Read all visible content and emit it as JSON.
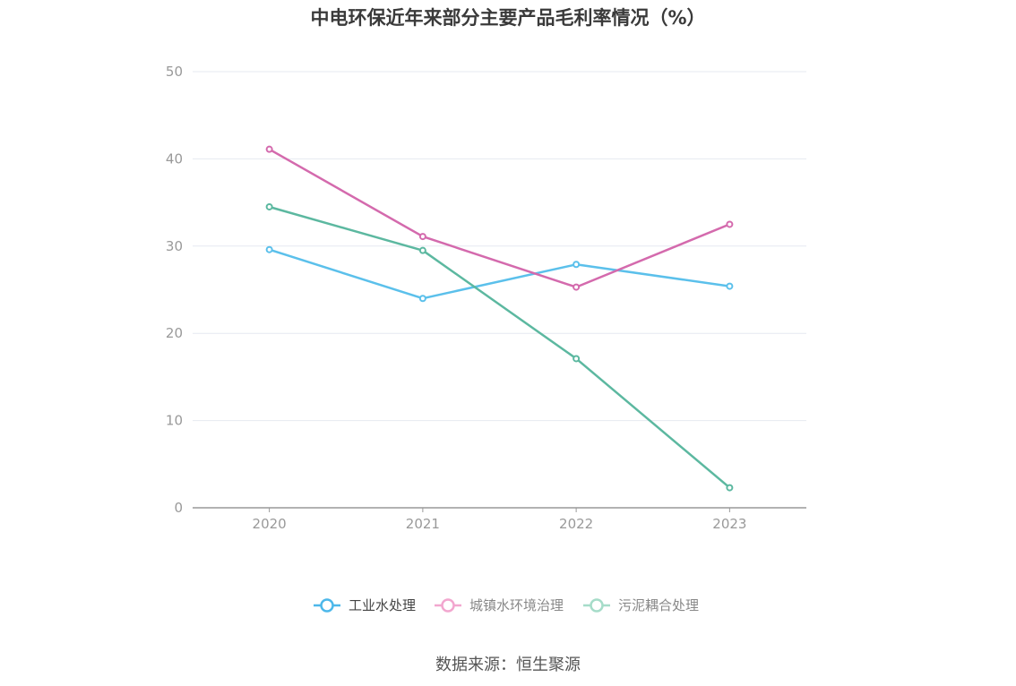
{
  "chart_data": {
    "type": "line",
    "title": "中电环保近年来部分主要产品毛利率情况（%）",
    "xlabel": "",
    "ylabel": "",
    "categories": [
      "2020",
      "2021",
      "2022",
      "2023"
    ],
    "ylim": [
      0,
      50
    ],
    "yticks": [
      "0",
      "10",
      "20",
      "30",
      "40",
      "50"
    ],
    "grid": true,
    "legend_position": "bottom",
    "series": [
      {
        "name": "工业水处理",
        "color": "#5bc0eb",
        "values": [
          29.6,
          24.0,
          27.9,
          25.4
        ]
      },
      {
        "name": "城镇水环境治理",
        "color": "#d46aad",
        "values": [
          41.1,
          31.1,
          25.3,
          32.5
        ]
      },
      {
        "name": "污泥耦合处理",
        "color": "#5cb8a0",
        "values": [
          34.5,
          29.5,
          17.1,
          2.3
        ]
      }
    ],
    "legend_text_colors": [
      "#444444",
      "#888888",
      "#888888"
    ],
    "legend_icon_colors": [
      "#4db8ea",
      "#f2a7cf",
      "#a6dcc9"
    ]
  },
  "source": "数据来源：恒生聚源"
}
